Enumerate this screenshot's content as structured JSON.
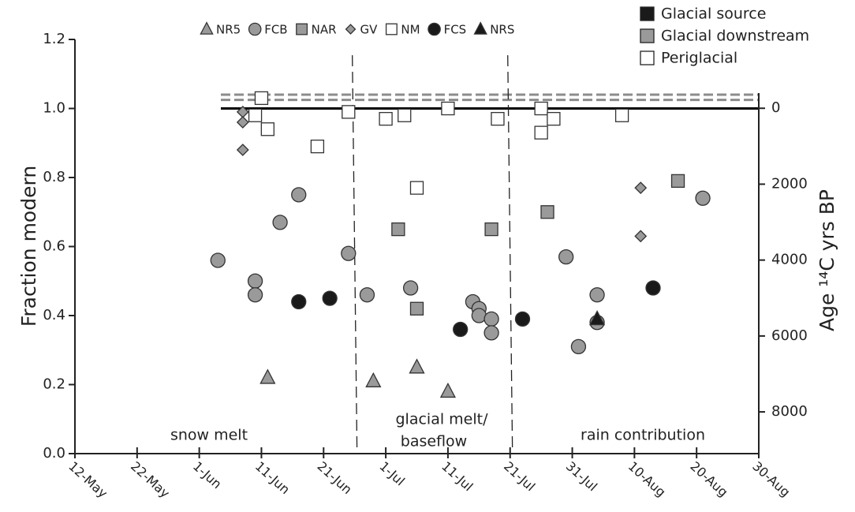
{
  "chart_data": {
    "type": "scatter",
    "ylabel": "Fraction modern",
    "y2label": "Age ¹⁴C yrs BP",
    "xlim": [
      "12-May",
      "30-Aug"
    ],
    "xticks": [
      "12-May",
      "22-May",
      "1-Jun",
      "11-Jun",
      "21-Jun",
      "1-Jul",
      "11-Jul",
      "21-Jul",
      "31-Jul",
      "10-Aug",
      "20-Aug",
      "30-Aug"
    ],
    "ylim": [
      0,
      1.2
    ],
    "yticks": [
      {
        "value": 0,
        "label": "0.0"
      },
      0.2,
      0.4,
      0.6,
      0.8,
      {
        "value": 1,
        "label": "1.0"
      },
      1.2
    ],
    "y2lim": [
      9100,
      -400
    ],
    "y2ticks": [
      0,
      2000,
      4000,
      6000,
      8000
    ],
    "hlines": [
      {
        "value": 1,
        "color": "#000000",
        "style": "solid"
      },
      {
        "value": 1.025,
        "color": "#8c8c8c",
        "style": "dashed"
      },
      {
        "value": 1.04,
        "color": "#8c8c8c",
        "style": "dashed"
      }
    ],
    "vlines": [
      "26-Jun",
      "21-Jul"
    ],
    "annotations": [
      [
        "snow melt"
      ],
      [
        "glacial melt/",
        "baseflow"
      ],
      [
        "rain contribution"
      ]
    ],
    "groups": [
      {
        "name": "Glacial source",
        "color": "#1a1a1a"
      },
      {
        "name": "Glacial downstream",
        "color": "#9a9a9a"
      },
      {
        "name": "Periglacial",
        "color": "#ffffff"
      }
    ],
    "series": [
      {
        "name": "NR5",
        "color": "#9a9a9a",
        "marker": "triangle",
        "x": [
          "12-Jun",
          "29-Jun",
          "6-Jul",
          "11-Jul"
        ],
        "values": [
          0.22,
          0.21,
          0.25,
          0.18
        ]
      },
      {
        "name": "FCB",
        "color": "#9a9a9a",
        "marker": "circle",
        "x": [
          "4-Jun",
          "10-Jun",
          "10-Jun",
          "14-Jun",
          "17-Jun",
          "25-Jun",
          "28-Jun",
          "5-Jul",
          "15-Jul",
          "16-Jul",
          "16-Jul",
          "18-Jul",
          "18-Jul",
          "30-Jul",
          "1-Aug",
          "4-Aug",
          "4-Aug",
          "21-Aug"
        ],
        "values": [
          0.56,
          0.5,
          0.46,
          0.67,
          0.75,
          0.58,
          0.46,
          0.48,
          0.44,
          0.42,
          0.4,
          0.39,
          0.35,
          0.57,
          0.31,
          0.46,
          0.38,
          0.74
        ]
      },
      {
        "name": "NAR",
        "color": "#9a9a9a",
        "marker": "square",
        "x": [
          "3-Jul",
          "6-Jul",
          "18-Jul",
          "27-Jul",
          "17-Aug"
        ],
        "values": [
          0.65,
          0.42,
          0.65,
          0.7,
          0.79
        ]
      },
      {
        "name": "GV",
        "color": "#9a9a9a",
        "marker": "diamond",
        "x": [
          "8-Jun",
          "8-Jun",
          "8-Jun",
          "19-Jul",
          "11-Aug",
          "11-Aug"
        ],
        "values": [
          0.99,
          0.96,
          0.88,
          0.97,
          0.77,
          0.63
        ]
      },
      {
        "name": "NM",
        "color": "#ffffff",
        "marker": "square",
        "x": [
          "11-Jun",
          "10-Jun",
          "12-Jun",
          "20-Jun",
          "25-Jun",
          "1-Jul",
          "4-Jul",
          "6-Jul",
          "11-Jul",
          "19-Jul",
          "26-Jul",
          "26-Jul",
          "28-Jul",
          "8-Aug"
        ],
        "values": [
          1.03,
          0.98,
          0.94,
          0.89,
          0.99,
          0.97,
          0.98,
          0.77,
          1.0,
          0.97,
          1.0,
          0.93,
          0.97,
          0.98
        ]
      },
      {
        "name": "FCS",
        "color": "#1a1a1a",
        "marker": "circle",
        "x": [
          "17-Jun",
          "22-Jun",
          "13-Jul",
          "23-Jul",
          "13-Aug"
        ],
        "values": [
          0.44,
          0.45,
          0.36,
          0.39,
          0.48
        ]
      },
      {
        "name": "NRS",
        "color": "#1a1a1a",
        "marker": "triangle",
        "x": [
          "4-Aug"
        ],
        "values": [
          0.39
        ]
      }
    ]
  }
}
